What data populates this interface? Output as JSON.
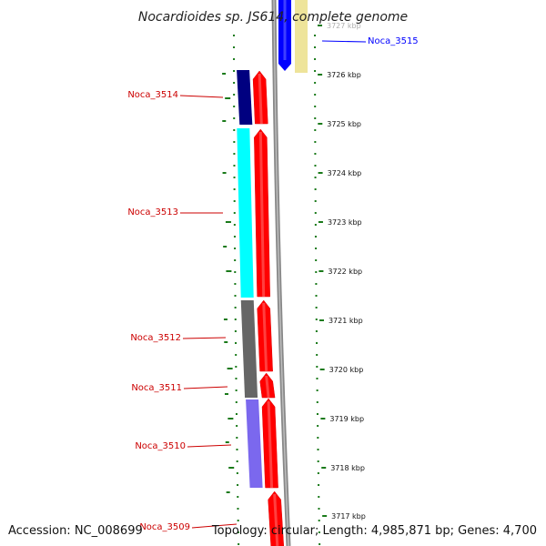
{
  "map": {
    "title": "Nocardioides sp. JS614, complete genome",
    "accession": "Accession: NC_008699",
    "topology": "Topology: circular; Length: 4,985,871 bp; Genes: 4,700"
  },
  "colors": {
    "forward_cds": "#ff0000",
    "backbone": "#808080",
    "tick_green": "#1a7a1a",
    "label_red": "#cc0000",
    "label_blue": "#1f1fd0"
  },
  "scale_ticks": [
    "3727 kbp",
    "3726 kbp",
    "3725 kbp",
    "3724 kbp",
    "3723 kbp",
    "3722 kbp",
    "3721 kbp",
    "3720 kbp",
    "3719 kbp",
    "3718 kbp",
    "3717 kbp"
  ],
  "genes": [
    {
      "label": "Noca_3515",
      "color": "#0000ff",
      "feature_color": "#eee49a",
      "strand": "reverse"
    },
    {
      "label": "Noca_3514",
      "color": "#cc0000",
      "feature_color": "#000080",
      "strand": "forward"
    },
    {
      "label": "Noca_3513",
      "color": "#cc0000",
      "feature_color": "#00ffff",
      "strand": "forward"
    },
    {
      "label": "Noca_3512",
      "color": "#cc0000",
      "feature_color": "#666666",
      "strand": "forward"
    },
    {
      "label": "Noca_3511",
      "color": "#cc0000",
      "feature_color": "#666666",
      "strand": "forward"
    },
    {
      "label": "Noca_3510",
      "color": "#cc0000",
      "feature_color": "#7b68ee",
      "strand": "forward"
    },
    {
      "label": "Noca_3509",
      "color": "#cc0000",
      "feature_color": "#ff0000",
      "strand": "forward"
    }
  ]
}
